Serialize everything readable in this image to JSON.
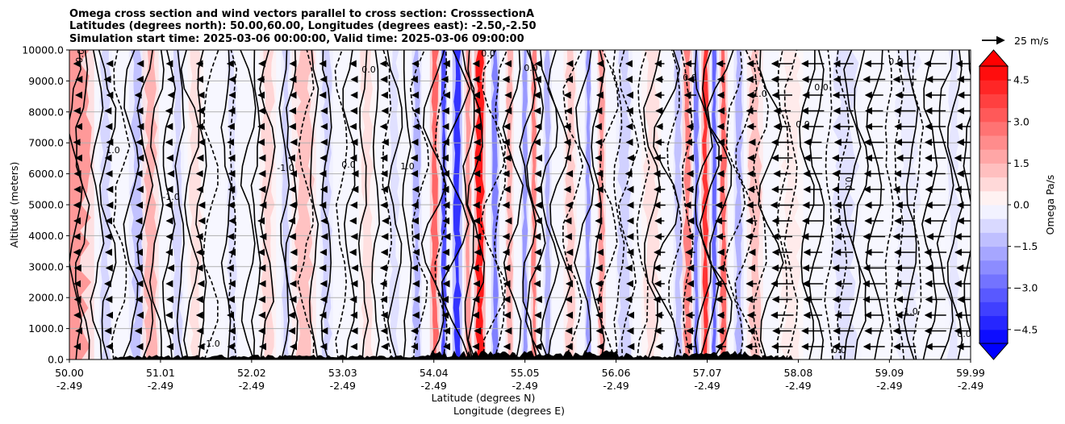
{
  "chart_data": {
    "type": "heatmap",
    "title": [
      "Omega cross section and wind vectors parallel to cross section: CrosssectionA",
      "Latitudes (degrees north): 50.00,60.00, Longitudes (degrees east): -2.50,-2.50",
      "Simulation start time: 2025-03-06 00:00:00, Valid time: 2025-03-06 09:00:00"
    ],
    "xlabel": "Latitude (degrees N)",
    "xlabel2": "Longitude (degrees E)",
    "ylabel": "Altitude (meters)",
    "xlim": [
      50.0,
      59.99
    ],
    "ylim": [
      0,
      10000
    ],
    "x_ticks": [
      {
        "lat": "50.00",
        "lon": "-2.49",
        "value": 50.0
      },
      {
        "lat": "51.01",
        "lon": "-2.49",
        "value": 51.01
      },
      {
        "lat": "52.02",
        "lon": "-2.49",
        "value": 52.02
      },
      {
        "lat": "53.03",
        "lon": "-2.49",
        "value": 53.03
      },
      {
        "lat": "54.04",
        "lon": "-2.49",
        "value": 54.04
      },
      {
        "lat": "55.05",
        "lon": "-2.49",
        "value": 55.05
      },
      {
        "lat": "56.06",
        "lon": "-2.49",
        "value": 56.06
      },
      {
        "lat": "57.07",
        "lon": "-2.49",
        "value": 57.07
      },
      {
        "lat": "58.08",
        "lon": "-2.49",
        "value": 58.08
      },
      {
        "lat": "59.09",
        "lon": "-2.49",
        "value": 59.09
      },
      {
        "lat": "59.99",
        "lon": "-2.49",
        "value": 59.99
      }
    ],
    "y_ticks": [
      "0.0",
      "1000.0",
      "2000.0",
      "3000.0",
      "4000.0",
      "5000.0",
      "6000.0",
      "7000.0",
      "8000.0",
      "9000.0",
      "10000.0"
    ],
    "grid": "horizontal",
    "colorbar": {
      "label": "Omega Pa/s",
      "range": [
        -5.0,
        5.0
      ],
      "tick_labels": [
        "4.5",
        "3.0",
        "1.5",
        "0.0",
        "−1.5",
        "−3.0",
        "−4.5"
      ],
      "tick_values": [
        4.5,
        3.0,
        1.5,
        0.0,
        -1.5,
        -3.0,
        -4.5
      ],
      "cmap": "bwr",
      "extend": "both",
      "low_color": "#0000ff",
      "high_color": "#ff0000"
    },
    "quiver_key": {
      "label": "25 m/s",
      "speed": 25
    },
    "contour_levels": [
      -1.0,
      0.0,
      1.0
    ],
    "contour_annotations": [
      "0.0",
      "-1.0",
      "1.0"
    ],
    "bands": [
      {
        "x": 50.05,
        "w": 0.25,
        "v": 2.0
      },
      {
        "x": 50.4,
        "w": 0.08,
        "v": -0.8
      },
      {
        "x": 50.75,
        "w": 0.1,
        "v": -1.2
      },
      {
        "x": 50.9,
        "w": 0.1,
        "v": 1.5
      },
      {
        "x": 51.2,
        "w": 0.08,
        "v": -0.8
      },
      {
        "x": 51.4,
        "w": 0.1,
        "v": 0.6
      },
      {
        "x": 51.8,
        "w": 0.08,
        "v": -0.6
      },
      {
        "x": 52.2,
        "w": 0.1,
        "v": 0.8
      },
      {
        "x": 52.4,
        "w": 0.06,
        "v": -0.9
      },
      {
        "x": 52.6,
        "w": 0.15,
        "v": 1.2
      },
      {
        "x": 52.85,
        "w": 0.08,
        "v": -0.9
      },
      {
        "x": 53.3,
        "w": 0.1,
        "v": 0.6
      },
      {
        "x": 53.6,
        "w": 0.08,
        "v": -0.6
      },
      {
        "x": 53.85,
        "w": 0.06,
        "v": -1.5
      },
      {
        "x": 54.05,
        "w": 0.06,
        "v": 3.0
      },
      {
        "x": 54.15,
        "w": 0.04,
        "v": -3.5
      },
      {
        "x": 54.3,
        "w": 0.06,
        "v": -4.0
      },
      {
        "x": 54.42,
        "w": 0.05,
        "v": 2.0
      },
      {
        "x": 54.55,
        "w": 0.07,
        "v": 4.5
      },
      {
        "x": 54.72,
        "w": 0.05,
        "v": -2.5
      },
      {
        "x": 54.88,
        "w": 0.05,
        "v": 1.5
      },
      {
        "x": 55.05,
        "w": 0.04,
        "v": -2.0
      },
      {
        "x": 55.15,
        "w": 0.04,
        "v": 2.5
      },
      {
        "x": 55.3,
        "w": 0.05,
        "v": -1.5
      },
      {
        "x": 55.55,
        "w": 0.08,
        "v": 1.0
      },
      {
        "x": 55.75,
        "w": 0.04,
        "v": -2.0
      },
      {
        "x": 55.9,
        "w": 0.05,
        "v": 2.0
      },
      {
        "x": 56.15,
        "w": 0.1,
        "v": -0.9
      },
      {
        "x": 56.45,
        "w": 0.12,
        "v": 0.6
      },
      {
        "x": 56.75,
        "w": 0.06,
        "v": -1.2
      },
      {
        "x": 56.85,
        "w": 0.06,
        "v": 2.5
      },
      {
        "x": 56.95,
        "w": 0.04,
        "v": -2.5
      },
      {
        "x": 57.05,
        "w": 0.05,
        "v": 4.0
      },
      {
        "x": 57.15,
        "w": 0.04,
        "v": -3.0
      },
      {
        "x": 57.25,
        "w": 0.05,
        "v": 3.0
      },
      {
        "x": 57.42,
        "w": 0.06,
        "v": -1.5
      },
      {
        "x": 57.6,
        "w": 0.1,
        "v": 1.2
      },
      {
        "x": 58.0,
        "w": 0.15,
        "v": 0.4
      },
      {
        "x": 58.6,
        "w": 0.2,
        "v": -0.6
      },
      {
        "x": 59.3,
        "w": 0.2,
        "v": -0.4
      },
      {
        "x": 59.8,
        "w": 0.1,
        "v": -0.5
      }
    ]
  }
}
